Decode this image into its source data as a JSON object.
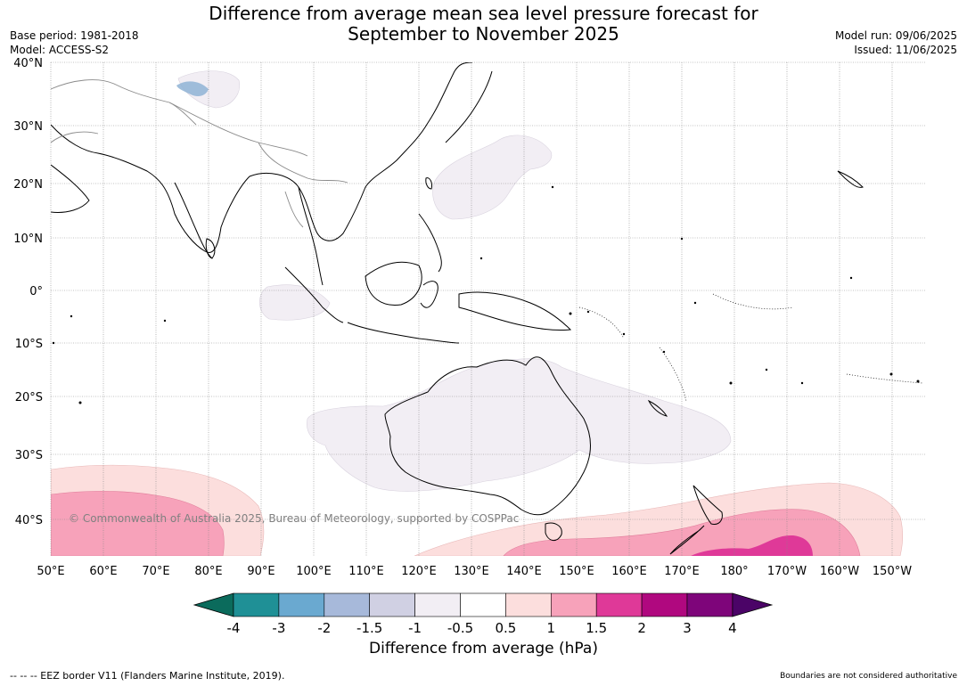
{
  "title": {
    "line1": "Difference from average mean sea level pressure forecast for",
    "line2": "September to November 2025"
  },
  "meta_left": {
    "base_period": "Base period: 1981-2018",
    "model": "Model: ACCESS-S2"
  },
  "meta_right": {
    "model_run": "Model run: 09/06/2025",
    "issued": "Issued: 11/06/2025"
  },
  "map": {
    "lat_labels": [
      "40°N",
      "30°N",
      "20°N",
      "10°N",
      "0°",
      "10°S",
      "20°S",
      "30°S",
      "40°S"
    ],
    "lon_labels": [
      "50°E",
      "60°E",
      "70°E",
      "80°E",
      "90°E",
      "100°E",
      "110°E",
      "120°E",
      "130°E",
      "140°E",
      "150°E",
      "160°E",
      "170°E",
      "180°",
      "170°W",
      "160°W",
      "150°W"
    ],
    "copyright": "© Commonwealth of Australia 2025, Bureau of Meteorology, supported by COSPPac"
  },
  "colorbar": {
    "label": "Difference from average (hPa)",
    "ticks": [
      "-4",
      "-3",
      "-2",
      "-1.5",
      "-1",
      "-0.5",
      "0.5",
      "1",
      "1.5",
      "2",
      "3",
      "4"
    ],
    "colors": {
      "below_min": "#0b6b5c",
      "bins": [
        "#1f9096",
        "#6aa9d0",
        "#a7b9da",
        "#d0d0e3",
        "#f2eef4",
        "#ffffff",
        "#fcdedd",
        "#f7a2ba",
        "#df3998",
        "#b0087f",
        "#7e057a"
      ],
      "above_max": "#4b0467"
    }
  },
  "footer": {
    "left": "--  --  -- EEZ border V11 (Flanders Marine Institute, 2019).",
    "right": "Boundaries are not considered authoritative"
  }
}
